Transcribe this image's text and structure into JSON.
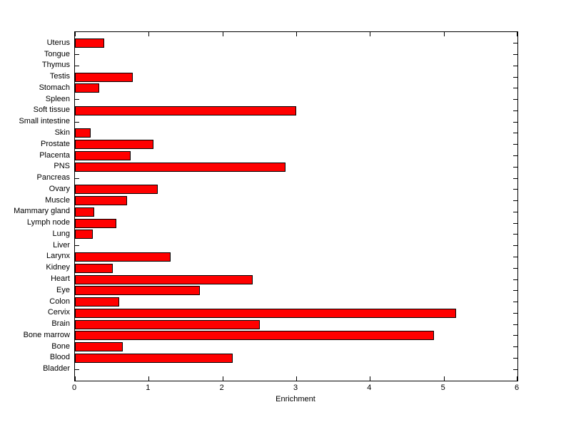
{
  "chart_data": {
    "type": "bar",
    "orientation": "horizontal",
    "title": "",
    "xlabel": "Enrichment",
    "ylabel": "",
    "xlim": [
      0,
      6
    ],
    "xticks": [
      0,
      1,
      2,
      3,
      4,
      5,
      6
    ],
    "grid": false,
    "legend": false,
    "categories": [
      "Uterus",
      "Tongue",
      "Thymus",
      "Testis",
      "Stomach",
      "Spleen",
      "Soft tissue",
      "Small intestine",
      "Skin",
      "Prostate",
      "Placenta",
      "PNS",
      "Pancreas",
      "Ovary",
      "Muscle",
      "Mammary gland",
      "Lymph node",
      "Lung",
      "Liver",
      "Larynx",
      "Kidney",
      "Heart",
      "Eye",
      "Colon",
      "Cervix",
      "Brain",
      "Bone marrow",
      "Bone",
      "Blood",
      "Bladder"
    ],
    "values": [
      0.4,
      0,
      0,
      0.78,
      0.33,
      0,
      3.0,
      0,
      0.21,
      1.06,
      0.75,
      2.85,
      0,
      1.12,
      0.71,
      0.26,
      0.56,
      0.24,
      0,
      1.3,
      0.51,
      2.41,
      1.69,
      0.6,
      5.17,
      2.51,
      4.87,
      0.65,
      2.14,
      0
    ],
    "bar_color": "#ff0000",
    "bar_edge_color": "#000000",
    "axis_color": "#000000",
    "background_color": "#ffffff",
    "bar_fraction_of_row": 0.8
  }
}
